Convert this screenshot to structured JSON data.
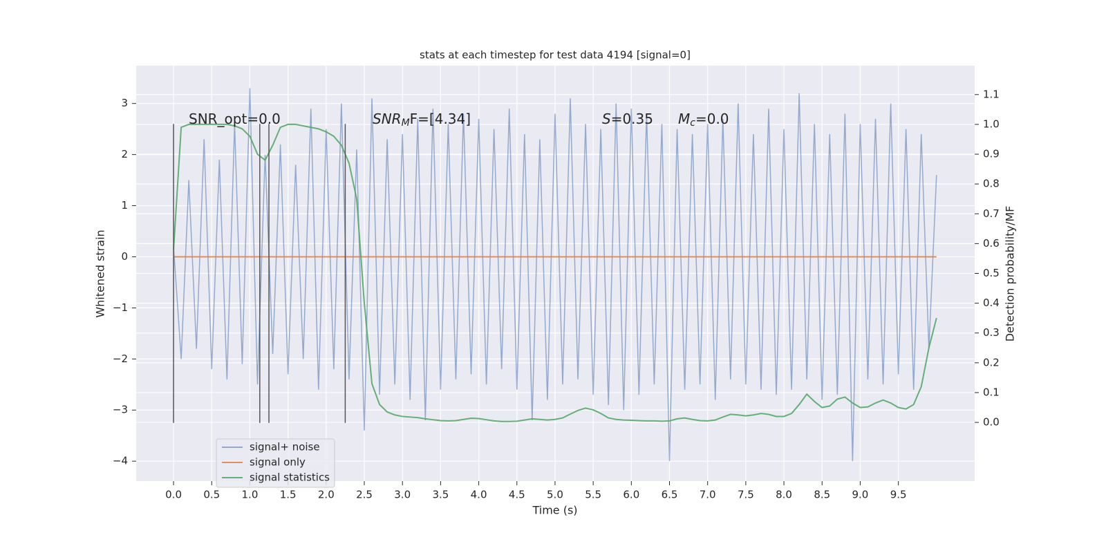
{
  "chart_data": {
    "type": "line",
    "title": "stats at each timestep for test data 4194 [signal=0]",
    "xlabel": "Time (s)",
    "ylabel": "Whitened strain",
    "y2label": "Detection probability/MF",
    "x": [
      0,
      0.1,
      0.2,
      0.3,
      0.4,
      0.5,
      0.6,
      0.7,
      0.8,
      0.9,
      1,
      1.1,
      1.2,
      1.3,
      1.4,
      1.5,
      1.6,
      1.7,
      1.8,
      1.9,
      2,
      2.1,
      2.2,
      2.3,
      2.4,
      2.5,
      2.6,
      2.7,
      2.8,
      2.9,
      3,
      3.1,
      3.2,
      3.3,
      3.4,
      3.5,
      3.6,
      3.7,
      3.8,
      3.9,
      4,
      4.1,
      4.2,
      4.3,
      4.4,
      4.5,
      4.6,
      4.7,
      4.8,
      4.9,
      5,
      5.1,
      5.2,
      5.3,
      5.4,
      5.5,
      5.6,
      5.7,
      5.8,
      5.9,
      6,
      6.1,
      6.2,
      6.3,
      6.4,
      6.5,
      6.6,
      6.7,
      6.8,
      6.9,
      7,
      7.1,
      7.2,
      7.3,
      7.4,
      7.5,
      7.6,
      7.7,
      7.8,
      7.9,
      8,
      8.1,
      8.2,
      8.3,
      8.4,
      8.5,
      8.6,
      8.7,
      8.8,
      8.9,
      9,
      9.1,
      9.2,
      9.3,
      9.4,
      9.5,
      9.6,
      9.7,
      9.8,
      9.9,
      10
    ],
    "series": [
      {
        "name": "signal+ noise",
        "color": "#4c72b0",
        "values": [
          0.2,
          -2.0,
          1.5,
          -1.8,
          2.3,
          -2.2,
          1.9,
          -2.4,
          2.6,
          -2.1,
          3.3,
          -2.5,
          2.0,
          -1.9,
          2.2,
          -2.3,
          1.8,
          -2.0,
          2.9,
          -2.6,
          2.5,
          -2.2,
          3.0,
          -2.4,
          2.1,
          -3.4,
          3.1,
          -2.7,
          2.3,
          -2.5,
          2.4,
          -2.8,
          2.7,
          -3.2,
          2.9,
          -2.6,
          2.6,
          -2.4,
          2.8,
          -2.3,
          2.7,
          -2.5,
          2.5,
          -2.2,
          2.9,
          -2.6,
          2.4,
          -3.2,
          2.3,
          -2.8,
          2.8,
          -2.5,
          3.1,
          -2.4,
          2.6,
          -2.7,
          2.5,
          -2.9,
          3.0,
          -3.0,
          2.9,
          -2.7,
          2.8,
          -2.5,
          2.6,
          -4.0,
          2.5,
          -2.6,
          2.4,
          -2.5,
          2.6,
          -2.8,
          2.7,
          -2.4,
          3.0,
          -2.5,
          2.4,
          -2.6,
          2.9,
          -2.7,
          2.5,
          -2.6,
          3.2,
          -2.4,
          2.6,
          -2.8,
          2.4,
          -2.7,
          2.8,
          -4.0,
          2.6,
          -2.4,
          2.7,
          -2.5,
          3.0,
          -2.3,
          2.5,
          -2.6,
          2.4,
          -1.8,
          1.6
        ]
      },
      {
        "name": "signal only",
        "color": "#dd8452",
        "values": [
          0,
          0,
          0,
          0,
          0,
          0,
          0,
          0,
          0,
          0,
          0,
          0,
          0,
          0,
          0,
          0,
          0,
          0,
          0,
          0,
          0,
          0,
          0,
          0,
          0,
          0,
          0,
          0,
          0,
          0,
          0,
          0,
          0,
          0,
          0,
          0,
          0,
          0,
          0,
          0,
          0,
          0,
          0,
          0,
          0,
          0,
          0,
          0,
          0,
          0,
          0,
          0,
          0,
          0,
          0,
          0,
          0,
          0,
          0,
          0,
          0,
          0,
          0,
          0,
          0,
          0,
          0,
          0,
          0,
          0,
          0,
          0,
          0,
          0,
          0,
          0,
          0,
          0,
          0,
          0,
          0,
          0,
          0,
          0,
          0,
          0,
          0,
          0,
          0,
          0,
          0,
          0,
          0,
          0,
          0,
          0,
          0,
          0,
          0,
          0,
          0
        ]
      },
      {
        "name": "signal statistics",
        "color": "#55a868",
        "axis": "y2",
        "values": [
          0.58,
          0.99,
          1.0,
          1.0,
          1.0,
          1.0,
          1.0,
          1.0,
          0.995,
          0.985,
          0.96,
          0.9,
          0.88,
          0.93,
          0.99,
          1.0,
          1.0,
          0.995,
          0.99,
          0.985,
          0.975,
          0.96,
          0.93,
          0.87,
          0.75,
          0.4,
          0.13,
          0.06,
          0.035,
          0.025,
          0.02,
          0.018,
          0.016,
          0.012,
          0.009,
          0.006,
          0.005,
          0.006,
          0.01,
          0.014,
          0.013,
          0.009,
          0.005,
          0.003,
          0.003,
          0.004,
          0.008,
          0.012,
          0.01,
          0.008,
          0.01,
          0.015,
          0.028,
          0.04,
          0.048,
          0.042,
          0.03,
          0.015,
          0.01,
          0.008,
          0.007,
          0.006,
          0.005,
          0.005,
          0.004,
          0.005,
          0.012,
          0.015,
          0.01,
          0.006,
          0.005,
          0.008,
          0.018,
          0.027,
          0.025,
          0.022,
          0.025,
          0.03,
          0.027,
          0.02,
          0.02,
          0.03,
          0.06,
          0.095,
          0.07,
          0.05,
          0.055,
          0.078,
          0.085,
          0.065,
          0.05,
          0.052,
          0.065,
          0.075,
          0.065,
          0.05,
          0.045,
          0.06,
          0.12,
          0.25,
          0.35
        ]
      }
    ],
    "vlines": {
      "x": [
        0,
        1.13,
        1.25,
        2.25
      ],
      "ymin": -3.25,
      "ymax": 2.6,
      "color": "#555555"
    },
    "annotations": [
      {
        "base": "SNR_opt=0.0"
      },
      {
        "base": "SNR",
        "sub": "M",
        "rest": "F=[4.34]"
      },
      {
        "base": "S",
        "rest": "=0.35"
      },
      {
        "base": "M",
        "sub": "c",
        "rest": "=0.0"
      }
    ],
    "xlim": [
      -0.49,
      10.5
    ],
    "xticks": [
      {
        "value": 0,
        "label": "0.0"
      },
      {
        "value": 0.5,
        "label": "0.5"
      },
      {
        "value": 1,
        "label": "1.0"
      },
      {
        "value": 1.5,
        "label": "1.5"
      },
      {
        "value": 2,
        "label": "2.0"
      },
      {
        "value": 2.5,
        "label": "2.5"
      },
      {
        "value": 3,
        "label": "3.0"
      },
      {
        "value": 3.5,
        "label": "3.5"
      },
      {
        "value": 4,
        "label": "4.0"
      },
      {
        "value": 4.5,
        "label": "4.5"
      },
      {
        "value": 5,
        "label": "5.0"
      },
      {
        "value": 5.5,
        "label": "5.5"
      },
      {
        "value": 6,
        "label": "6.0"
      },
      {
        "value": 6.5,
        "label": "6.5"
      },
      {
        "value": 7,
        "label": "7.0"
      },
      {
        "value": 7.5,
        "label": "7.5"
      },
      {
        "value": 8,
        "label": "8.0"
      },
      {
        "value": 8.5,
        "label": "8.5"
      },
      {
        "value": 9,
        "label": "9.0"
      },
      {
        "value": 9.5,
        "label": "9.5"
      }
    ],
    "ylim": [
      -4.39,
      3.74
    ],
    "yticks": [
      {
        "value": -4,
        "label": "−4"
      },
      {
        "value": -3,
        "label": "−3"
      },
      {
        "value": -2,
        "label": "−2"
      },
      {
        "value": -1,
        "label": "−1"
      },
      0,
      1,
      2,
      3
    ],
    "y2lim": [
      -0.197,
      1.197
    ],
    "y2ticks": [
      {
        "value": 0,
        "label": "0.0"
      },
      {
        "value": 0.1,
        "label": "0.1"
      },
      {
        "value": 0.2,
        "label": "0.2"
      },
      {
        "value": 0.3,
        "label": "0.3"
      },
      {
        "value": 0.4,
        "label": "0.4"
      },
      {
        "value": 0.5,
        "label": "0.5"
      },
      {
        "value": 0.6,
        "label": "0.6"
      },
      {
        "value": 0.7,
        "label": "0.7"
      },
      {
        "value": 0.8,
        "label": "0.8"
      },
      {
        "value": 0.9,
        "label": "0.9"
      },
      {
        "value": 1,
        "label": "1.0"
      },
      {
        "value": 1.1,
        "label": "1.1"
      }
    ],
    "grid": true,
    "legend": "lower left",
    "background": "#eaeaf2"
  }
}
